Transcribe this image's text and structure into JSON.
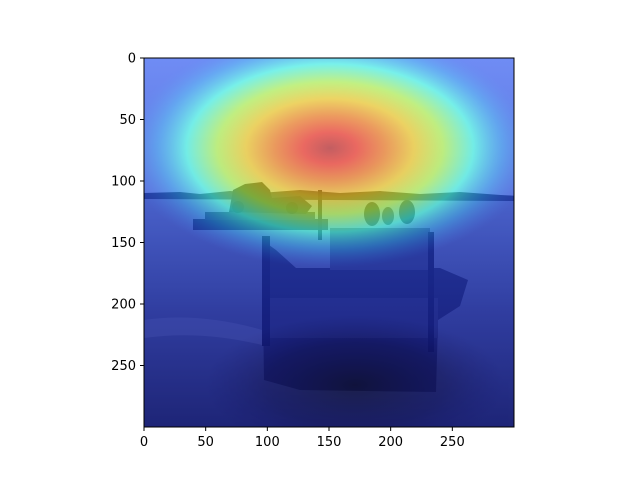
{
  "figure": {
    "description_source": "matplotlib imshow of a photograph with a jet-colormap saliency heatmap overlaid",
    "image_extent": {
      "x": [
        0,
        300
      ],
      "y": [
        0,
        300
      ]
    },
    "colormap": "jet",
    "overlay_alpha": 0.5,
    "photo_subjects": [
      "sea",
      "horizon-treeline",
      "distant-barge-with-vehicle",
      "foreground-boat-with-people",
      "water-wake"
    ],
    "heat_peak": {
      "x": 155,
      "y": 75
    },
    "axes": {
      "x_ticks": [
        {
          "value": 0,
          "label": "0"
        },
        {
          "value": 50,
          "label": "50"
        },
        {
          "value": 100,
          "label": "100"
        },
        {
          "value": 150,
          "label": "150"
        },
        {
          "value": 200,
          "label": "200"
        },
        {
          "value": 250,
          "label": "250"
        }
      ],
      "y_ticks": [
        {
          "value": 0,
          "label": "0"
        },
        {
          "value": 50,
          "label": "50"
        },
        {
          "value": 100,
          "label": "100"
        },
        {
          "value": 150,
          "label": "150"
        },
        {
          "value": 200,
          "label": "200"
        },
        {
          "value": 250,
          "label": "250"
        }
      ]
    }
  }
}
